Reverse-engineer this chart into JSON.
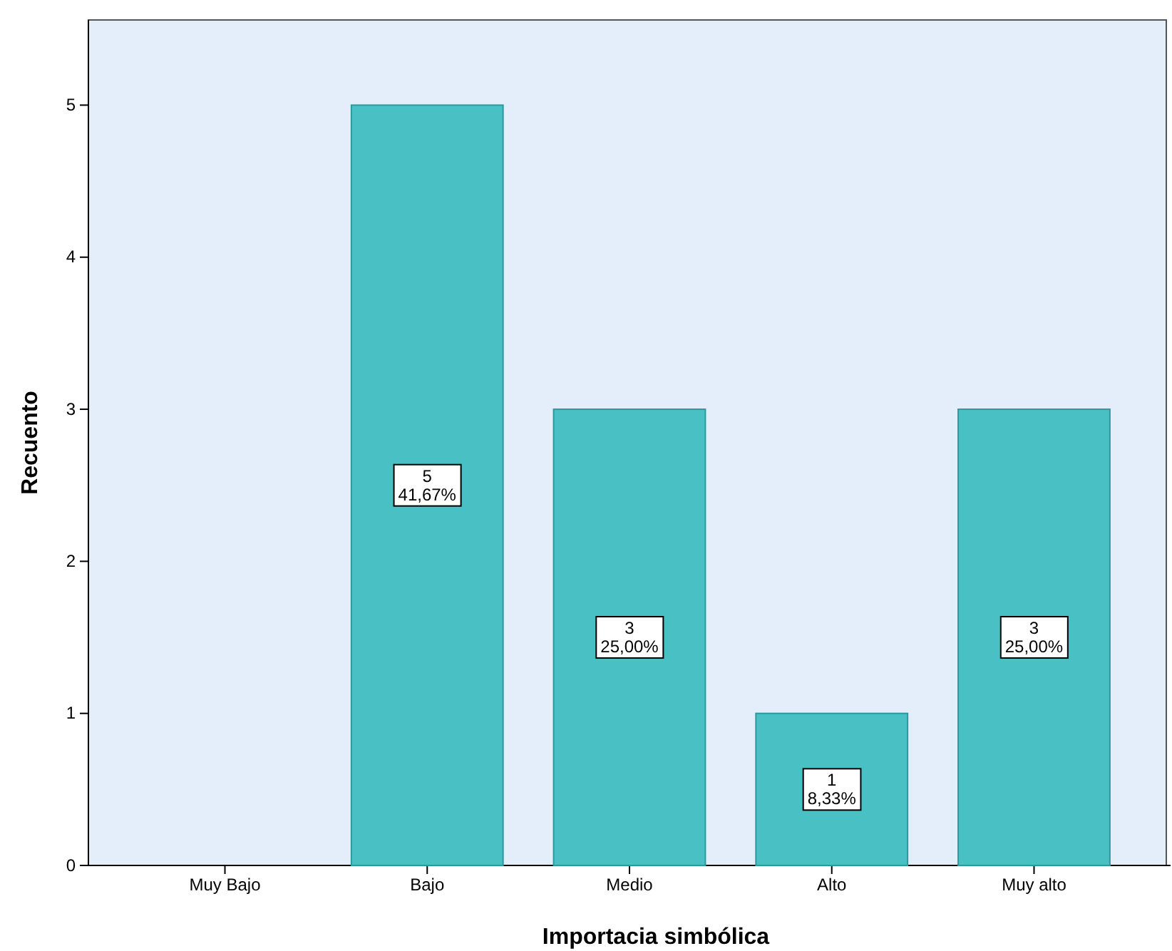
{
  "chart_data": {
    "type": "bar",
    "xlabel": "Importacia simbólica",
    "ylabel": "Recuento",
    "categories": [
      "Muy Bajo",
      "Bajo",
      "Medio",
      "Alto",
      "Muy alto"
    ],
    "values": [
      0,
      5,
      3,
      1,
      3
    ],
    "value_labels": [
      null,
      "5\n41,67%",
      "3\n25,00%",
      "1\n8,33%",
      "3\n25,00%"
    ],
    "color": "#48c0c4",
    "ylim": [
      0,
      5.56
    ],
    "yticks": [
      0,
      1,
      2,
      3,
      4,
      5
    ]
  }
}
